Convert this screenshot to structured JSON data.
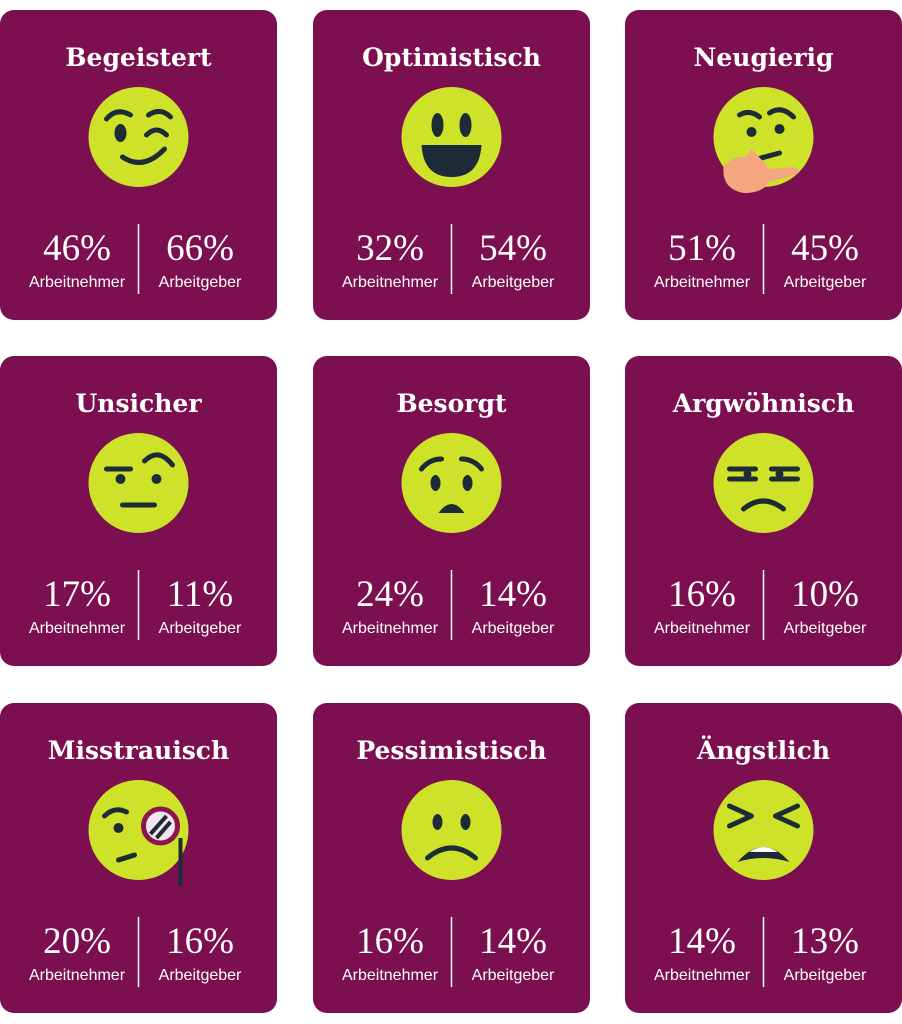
{
  "cards": [
    {
      "title": "Begeistert",
      "stats": [
        {
          "value": "46%",
          "label": "Arbeitnehmer"
        },
        {
          "value": "66%",
          "label": "Arbeitgeber"
        }
      ]
    },
    {
      "title": "Optimistisch",
      "stats": [
        {
          "value": "32%",
          "label": "Arbeitnehmer"
        },
        {
          "value": "54%",
          "label": "Arbeitgeber"
        }
      ]
    },
    {
      "title": "Neugierig",
      "stats": [
        {
          "value": "51%",
          "label": "Arbeitnehmer"
        },
        {
          "value": "45%",
          "label": "Arbeitgeber"
        }
      ]
    },
    {
      "title": "Unsicher",
      "stats": [
        {
          "value": "17%",
          "label": "Arbeitnehmer"
        },
        {
          "value": "11%",
          "label": "Arbeitgeber"
        }
      ]
    },
    {
      "title": "Besorgt",
      "stats": [
        {
          "value": "24%",
          "label": "Arbeitnehmer"
        },
        {
          "value": "14%",
          "label": "Arbeitgeber"
        }
      ]
    },
    {
      "title": "Argwöhnisch",
      "stats": [
        {
          "value": "16%",
          "label": "Arbeitnehmer"
        },
        {
          "value": "10%",
          "label": "Arbeitgeber"
        }
      ]
    },
    {
      "title": "Misstrauisch",
      "stats": [
        {
          "value": "20%",
          "label": "Arbeitnehmer"
        },
        {
          "value": "16%",
          "label": "Arbeitgeber"
        }
      ]
    },
    {
      "title": "Pessimistisch",
      "stats": [
        {
          "value": "16%",
          "label": "Arbeitnehmer"
        },
        {
          "value": "14%",
          "label": "Arbeitgeber"
        }
      ]
    },
    {
      "title": "Ängstlich",
      "stats": [
        {
          "value": "14%",
          "label": "Arbeitnehmer"
        },
        {
          "value": "13%",
          "label": "Arbeitgeber"
        }
      ]
    }
  ]
}
